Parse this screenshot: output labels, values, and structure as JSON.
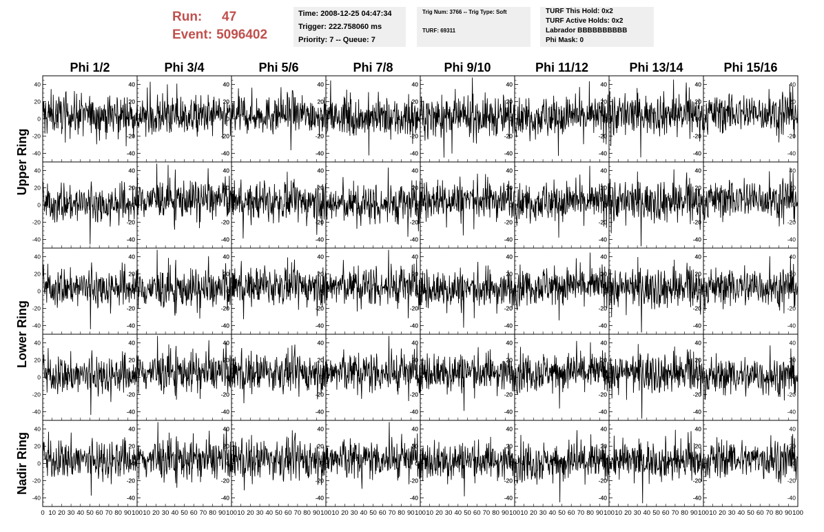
{
  "header": {
    "run_label": "Run:",
    "run_value": "47",
    "event_label": "Event:",
    "event_value": "5096402",
    "time": "Time: 2008-12-25 04:47:34",
    "trigger": "Trigger: 222.758060 ms",
    "priority": "Priority: 7 -- Queue: 7",
    "trig_info": "Trig Num: 3766 -- Trig Type: Soft",
    "turf": "TURF: 69311",
    "turf_this_hold": "TURF This Hold: 0x2",
    "turf_active_holds": "TURF Active Holds: 0x2",
    "labrador": "Labrador BBBBBBBBBB",
    "phi_mask": "Phi Mask: 0"
  },
  "columns": [
    "Phi 1/2",
    "Phi 3/4",
    "Phi 5/6",
    "Phi 7/8",
    "Phi 9/10",
    "Phi 11/12",
    "Phi 13/14",
    "Phi 15/16"
  ],
  "row_groups": [
    "Upper Ring",
    "Lower Ring",
    "Nadir Ring"
  ],
  "chart_data": {
    "type": "line",
    "grid": "5 rows x 8 columns of waveform panels",
    "rows_per_group": {
      "Upper Ring": 2,
      "Lower Ring": 2,
      "Nadir Ring": 1
    },
    "xlim": [
      0,
      100
    ],
    "ylim": [
      -50,
      50
    ],
    "xticks": [
      0,
      10,
      20,
      30,
      40,
      50,
      60,
      70,
      80,
      90,
      100
    ],
    "xtick_labels": [
      "0",
      "10",
      "20",
      "30",
      "40",
      "50",
      "60",
      "70",
      "80",
      "90",
      "100"
    ],
    "yticks": [
      -40,
      -20,
      0,
      20,
      40
    ],
    "ytick_labels": [
      "-40",
      "-20",
      "0",
      "20",
      "40"
    ],
    "samples_per_trace": 260,
    "trace_amplitude": 20,
    "line_color": "#000000",
    "xlabel": "",
    "ylabel": ""
  },
  "colors": {
    "run_text": "#c0504d",
    "info_bg": "#efefef",
    "trace": "#000000"
  }
}
